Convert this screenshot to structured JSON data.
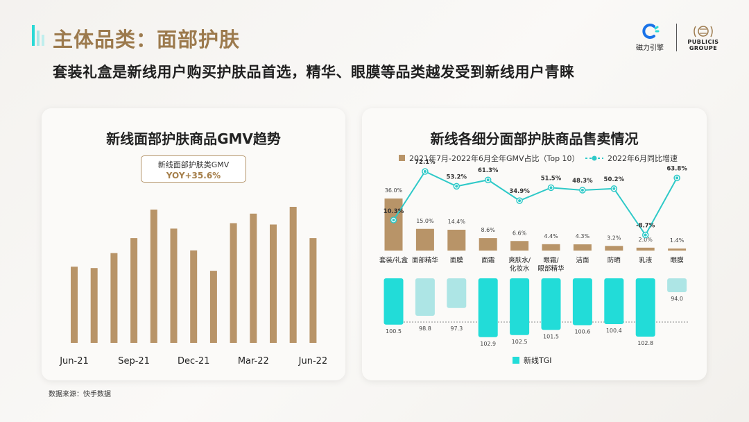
{
  "header": {
    "title": "主体品类：面部护肤",
    "subtitle": "套装礼盒是新线用户购买护肤品首选，精华、眼膜等品类越发受到新线用户青睐",
    "accent_color": "#9c7a4d",
    "bar_colors": [
      "#2ad9d6",
      "#a9e8e7",
      "#bfeeed"
    ]
  },
  "logos": {
    "left_icon": "c-spinner-icon",
    "left_text": "磁力引擎",
    "right_icon": "laurel-crest-icon",
    "right_text_1": "PUBLICIS",
    "right_text_2": "GROUPE"
  },
  "left_panel": {
    "title": "新线面部护肤商品GMV趋势",
    "box_label": "新线面部护肤类GMV",
    "box_value": "YOY+35.6%"
  },
  "right_panel": {
    "title": "新线各细分面部护肤商品售卖情况",
    "legend_bar": "2021年7月-2022年6月全年GMV占比（Top 10）",
    "legend_line": "2022年6月同比增速",
    "legend_tgi": "新线TGI"
  },
  "source": "数据来源：快手数据",
  "chart_data": [
    {
      "type": "bar",
      "title": "新线面部护肤商品GMV趋势",
      "bar_color": "#b89468",
      "x_tick_labels": [
        "Jun-21",
        "Sep-21",
        "Dec-21",
        "Mar-22",
        "Jun-22"
      ],
      "values": [
        56,
        55,
        66,
        77,
        98,
        84,
        68,
        53,
        88,
        95,
        87,
        100,
        77
      ],
      "note": "y axis unlabeled; values relative to peak (Jun-22 shown as 13 monthly bars)"
    },
    {
      "type": "bar+line",
      "title": "新线各细分面部护肤商品售卖情况",
      "categories": [
        [
          "套装/礼盒"
        ],
        [
          "面部精华"
        ],
        [
          "面膜"
        ],
        [
          "面霜"
        ],
        [
          "爽肤水/",
          "化妆水"
        ],
        [
          "眼霜/",
          "眼部精华"
        ],
        [
          "洁面"
        ],
        [
          "防晒"
        ],
        [
          "乳液"
        ],
        [
          "眼膜"
        ]
      ],
      "series": [
        {
          "name": "2021年7月-2022年6月全年GMV占比（Top 10）",
          "kind": "bar",
          "color": "#b89468",
          "values": [
            36.0,
            15.0,
            14.4,
            8.6,
            6.6,
            4.4,
            4.3,
            3.2,
            2.0,
            1.4
          ],
          "labels": [
            "36.0%",
            "15.0%",
            "14.4%",
            "8.6%",
            "6.6%",
            "4.4%",
            "4.3%",
            "3.2%",
            "2.0%",
            "1.4%"
          ]
        },
        {
          "name": "2022年6月同比增速",
          "kind": "line",
          "color": "#2ec9c8",
          "values": [
            10.3,
            72.1,
            53.2,
            61.3,
            34.9,
            51.5,
            48.3,
            50.2,
            -8.7,
            63.8
          ],
          "labels": [
            "10.3%",
            "72.1%",
            "53.2%",
            "61.3%",
            "34.9%",
            "51.5%",
            "48.3%",
            "50.2%",
            "-8.7%",
            "63.8%"
          ]
        },
        {
          "name": "新线TGI",
          "kind": "bar",
          "baseline": 100,
          "color_above": "#22dcd8",
          "color_below": "#ade5e5",
          "values": [
            100.5,
            98.8,
            97.3,
            102.9,
            102.5,
            101.5,
            100.6,
            100.4,
            102.8,
            94.0
          ],
          "labels": [
            "100.5",
            "98.8",
            "97.3",
            "102.9",
            "102.5",
            "101.5",
            "100.6",
            "100.4",
            "102.8",
            "94.0"
          ]
        }
      ]
    }
  ]
}
